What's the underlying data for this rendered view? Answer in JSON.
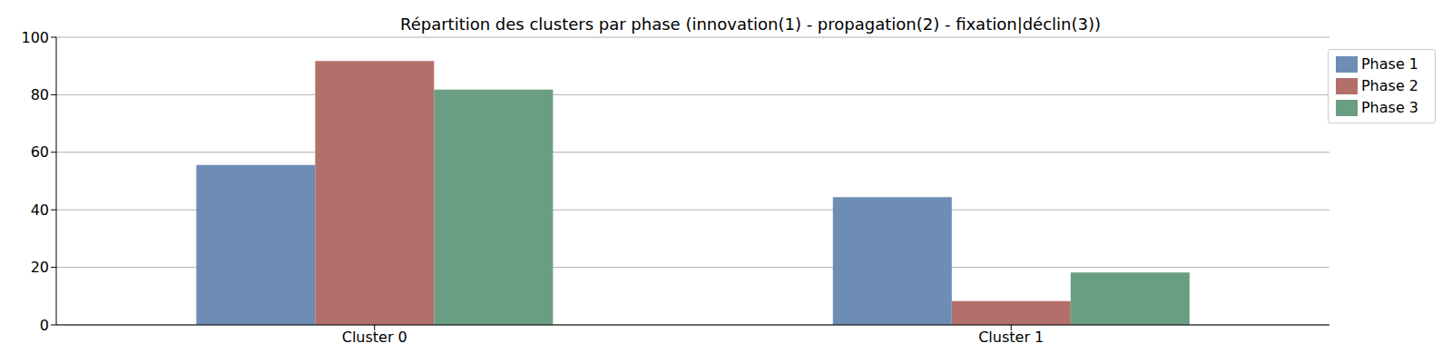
{
  "chart_data": {
    "type": "bar",
    "title": "Répartition des clusters par phase (innovation(1) - propagation(2) - fixation|déclin(3))",
    "categories": [
      "Cluster 0",
      "Cluster 1"
    ],
    "series": [
      {
        "name": "Phase 1",
        "color": "#6d8db5",
        "values": [
          55.6,
          44.4
        ]
      },
      {
        "name": "Phase 2",
        "color": "#b3706b",
        "values": [
          91.7,
          8.3
        ]
      },
      {
        "name": "Phase 3",
        "color": "#6a9e82",
        "values": [
          81.8,
          18.2
        ]
      }
    ],
    "ylim": [
      0,
      100
    ],
    "yticks": [
      0,
      20,
      40,
      60,
      80,
      100
    ],
    "grid": true,
    "legend": "upper right"
  }
}
